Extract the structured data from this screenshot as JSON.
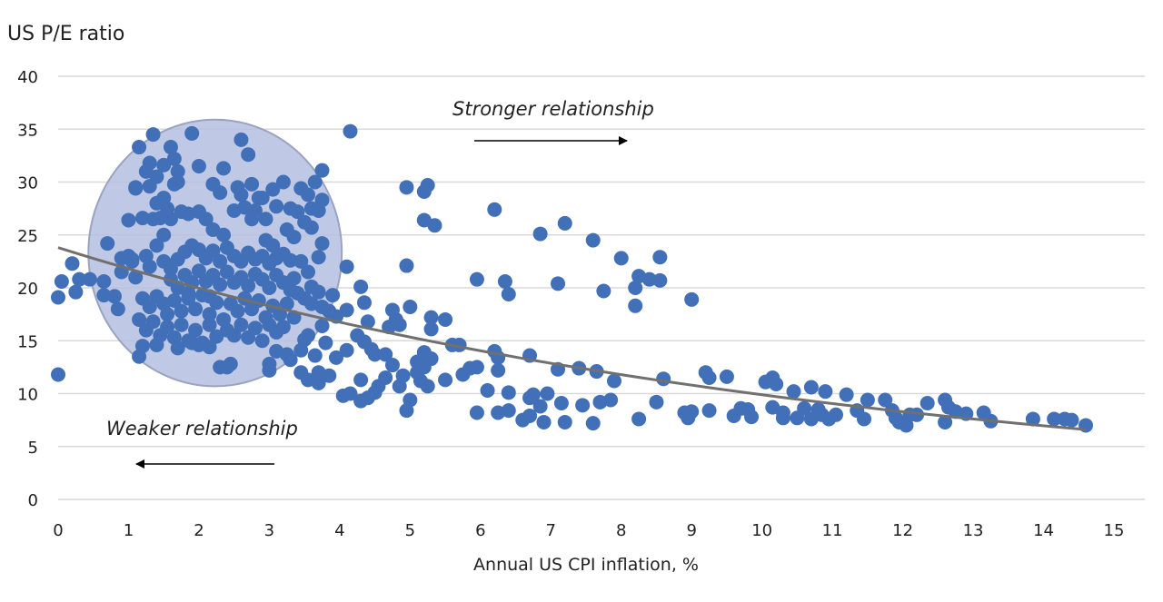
{
  "chart_data": {
    "type": "scatter",
    "title": "",
    "ylabel": "US P/E ratio",
    "xlabel": "Annual US CPI inflation, %",
    "xlim": [
      0,
      15
    ],
    "ylim": [
      0,
      40
    ],
    "xticks": [
      "0",
      "1",
      "2",
      "3",
      "4",
      "5",
      "6",
      "7",
      "8",
      "9",
      "10",
      "11",
      "12",
      "13",
      "14",
      "15"
    ],
    "yticks": [
      "0",
      "5",
      "10",
      "15",
      "20",
      "25",
      "30",
      "35",
      "40"
    ],
    "grid": "horizontal",
    "legend": "none",
    "colors": {
      "points": "#4170b8",
      "trendline": "#707070",
      "highlight_fill": "#b4bfe0",
      "highlight_stroke": "#9aa3bf",
      "grid": "#d9d9d9"
    },
    "trendline": {
      "type": "exponential",
      "a": 23.8,
      "b": -0.0878,
      "x_range": [
        0,
        14.6
      ]
    },
    "highlight_ellipse": {
      "cx": 2.23,
      "cy": 23.3,
      "rx": 1.8,
      "ry": 12.6
    },
    "annotations": [
      {
        "text": "Stronger relationship",
        "arrow": "right"
      },
      {
        "text": "Weaker relationship",
        "arrow": "left"
      }
    ],
    "points": [
      [
        0,
        11.8
      ],
      [
        0,
        19.1
      ],
      [
        0.05,
        20.6
      ],
      [
        0.2,
        22.3
      ],
      [
        0.25,
        19.6
      ],
      [
        0.3,
        20.8
      ],
      [
        0.45,
        20.8
      ],
      [
        0.65,
        20.6
      ],
      [
        0.7,
        24.2
      ],
      [
        0.65,
        19.3
      ],
      [
        0.8,
        19.2
      ],
      [
        0.85,
        18
      ],
      [
        0.9,
        22.8
      ],
      [
        0.9,
        21.5
      ],
      [
        1,
        26.4
      ],
      [
        1.05,
        22.7
      ],
      [
        1.15,
        33.3
      ],
      [
        1.1,
        29.4
      ],
      [
        1.35,
        34.5
      ],
      [
        1.9,
        34.6
      ],
      [
        2.6,
        34
      ],
      [
        2.7,
        32.6
      ],
      [
        3.75,
        31.1
      ],
      [
        4.15,
        34.8
      ],
      [
        4.1,
        22
      ],
      [
        4.3,
        20.1
      ],
      [
        4.95,
        22.1
      ],
      [
        4.95,
        29.5
      ],
      [
        5.25,
        29.7
      ],
      [
        5.2,
        29.1
      ],
      [
        5.2,
        26.4
      ],
      [
        5.35,
        25.9
      ],
      [
        6.2,
        27.4
      ],
      [
        5.95,
        20.8
      ],
      [
        6.35,
        20.6
      ],
      [
        6.4,
        19.4
      ],
      [
        6.85,
        25.1
      ],
      [
        7.2,
        26.1
      ],
      [
        7.6,
        24.5
      ],
      [
        7.1,
        20.4
      ],
      [
        7.75,
        19.7
      ],
      [
        8,
        22.8
      ],
      [
        8.25,
        21.1
      ],
      [
        8.2,
        20
      ],
      [
        8.2,
        18.3
      ],
      [
        8.4,
        20.8
      ],
      [
        8.55,
        22.9
      ],
      [
        8.55,
        20.7
      ],
      [
        9,
        18.9
      ],
      [
        5.95,
        8.2
      ],
      [
        6.1,
        10.3
      ],
      [
        6.25,
        8.2
      ],
      [
        6.4,
        8.4
      ],
      [
        6.4,
        10.1
      ],
      [
        6.6,
        7.5
      ],
      [
        6.7,
        7.9
      ],
      [
        6.7,
        9.6
      ],
      [
        6.75,
        9.9
      ],
      [
        6.85,
        8.8
      ],
      [
        6.9,
        7.3
      ],
      [
        6.95,
        10
      ],
      [
        7.15,
        9.1
      ],
      [
        7.2,
        7.3
      ],
      [
        7.45,
        8.9
      ],
      [
        7.6,
        7.2
      ],
      [
        7.7,
        9.2
      ],
      [
        7.85,
        9.4
      ],
      [
        7.9,
        11.2
      ],
      [
        7.1,
        12.3
      ],
      [
        7.4,
        12.4
      ],
      [
        7.65,
        12.1
      ],
      [
        6.7,
        13.6
      ],
      [
        6.2,
        14
      ],
      [
        6.25,
        13.4
      ],
      [
        6.25,
        12.2
      ],
      [
        5.95,
        12.5
      ],
      [
        5.85,
        12.4
      ],
      [
        5.75,
        11.8
      ],
      [
        5.5,
        11.3
      ],
      [
        5.7,
        14.6
      ],
      [
        5.6,
        14.6
      ],
      [
        5.5,
        17
      ],
      [
        5.3,
        17.2
      ],
      [
        5.3,
        16.1
      ],
      [
        5.2,
        13.9
      ],
      [
        5.3,
        13.3
      ],
      [
        5,
        18.2
      ],
      [
        5,
        9.4
      ],
      [
        4.95,
        8.4
      ],
      [
        8.25,
        7.6
      ],
      [
        8.5,
        9.2
      ],
      [
        8.6,
        11.4
      ],
      [
        8.9,
        8.2
      ],
      [
        9,
        8.3
      ],
      [
        8.95,
        7.7
      ],
      [
        9.2,
        12
      ],
      [
        9.25,
        11.5
      ],
      [
        9.25,
        8.4
      ],
      [
        9.5,
        11.6
      ],
      [
        9.6,
        7.9
      ],
      [
        9.7,
        8.6
      ],
      [
        9.8,
        8.5
      ],
      [
        9.85,
        7.8
      ],
      [
        10.05,
        11.1
      ],
      [
        10.15,
        11.5
      ],
      [
        10.2,
        10.9
      ],
      [
        10.15,
        8.7
      ],
      [
        10.3,
        8.2
      ],
      [
        10.3,
        7.7
      ],
      [
        10.45,
        10.2
      ],
      [
        10.5,
        7.7
      ],
      [
        10.6,
        8.6
      ],
      [
        10.7,
        10.6
      ],
      [
        10.7,
        7.6
      ],
      [
        10.8,
        8.5
      ],
      [
        10.85,
        8
      ],
      [
        10.9,
        10.2
      ],
      [
        10.95,
        7.6
      ],
      [
        11.05,
        8
      ],
      [
        11.2,
        9.9
      ],
      [
        11.35,
        8.4
      ],
      [
        11.45,
        7.6
      ],
      [
        11.5,
        9.4
      ],
      [
        11.75,
        9.4
      ],
      [
        11.85,
        8.4
      ],
      [
        11.9,
        7.7
      ],
      [
        11.95,
        7.3
      ],
      [
        12.05,
        7
      ],
      [
        12.1,
        8
      ],
      [
        12.2,
        8
      ],
      [
        12.35,
        9.1
      ],
      [
        12.6,
        7.3
      ],
      [
        12.6,
        9.4
      ],
      [
        12.65,
        8.7
      ],
      [
        12.75,
        8.3
      ],
      [
        12.9,
        8.1
      ],
      [
        13.15,
        8.2
      ],
      [
        13.25,
        7.4
      ],
      [
        13.85,
        7.6
      ],
      [
        14.15,
        7.6
      ],
      [
        14.3,
        7.6
      ],
      [
        14.4,
        7.5
      ],
      [
        14.6,
        7
      ],
      [
        3.45,
        12
      ],
      [
        3.55,
        11.3
      ],
      [
        3.7,
        12
      ],
      [
        3.7,
        11
      ],
      [
        3.85,
        11.7
      ],
      [
        4.05,
        9.8
      ],
      [
        4.15,
        10
      ],
      [
        4.3,
        9.3
      ],
      [
        4.3,
        11.3
      ],
      [
        4.4,
        9.6
      ],
      [
        4.5,
        10.1
      ],
      [
        4.55,
        10.7
      ],
      [
        4.65,
        11.5
      ],
      [
        4.75,
        12.7
      ],
      [
        4.85,
        10.7
      ],
      [
        4.9,
        11.7
      ],
      [
        4.65,
        13.7
      ],
      [
        4.5,
        13.7
      ],
      [
        4.45,
        14.2
      ],
      [
        4.35,
        14.9
      ],
      [
        4.25,
        15.5
      ],
      [
        4.4,
        16.8
      ],
      [
        4.35,
        18.6
      ],
      [
        4.75,
        17.9
      ],
      [
        4.8,
        17
      ],
      [
        4.85,
        16.5
      ],
      [
        4.7,
        16.3
      ],
      [
        4.1,
        17.9
      ],
      [
        3.95,
        17.3
      ],
      [
        3.9,
        19.3
      ],
      [
        4.1,
        14.1
      ],
      [
        3.95,
        13.4
      ],
      [
        3.8,
        14.8
      ],
      [
        3.65,
        13.6
      ],
      [
        3.55,
        15.5
      ],
      [
        3.75,
        16.4
      ],
      [
        5.1,
        12
      ],
      [
        5.2,
        12.5
      ],
      [
        5.1,
        13
      ],
      [
        5.15,
        11.2
      ],
      [
        5.25,
        10.7
      ],
      [
        1.25,
        31
      ],
      [
        1.3,
        31.8
      ],
      [
        1.4,
        30.5
      ],
      [
        1.5,
        31.6
      ],
      [
        1.6,
        33.3
      ],
      [
        1.65,
        32.2
      ],
      [
        1.7,
        31
      ],
      [
        1.7,
        30
      ],
      [
        1.65,
        29.8
      ],
      [
        1.1,
        29.5
      ],
      [
        1.3,
        29.6
      ],
      [
        1.4,
        28
      ],
      [
        1.5,
        28.5
      ],
      [
        1.55,
        27.5
      ],
      [
        1.6,
        26.5
      ],
      [
        1.75,
        27.2
      ],
      [
        1.85,
        27
      ],
      [
        2,
        27.2
      ],
      [
        2.1,
        26.5
      ],
      [
        2.2,
        25.5
      ],
      [
        2.35,
        25
      ],
      [
        2.5,
        27.3
      ],
      [
        2.65,
        27.6
      ],
      [
        2.8,
        27.3
      ],
      [
        2.75,
        26.5
      ],
      [
        2.95,
        26.5
      ],
      [
        2.9,
        28.5
      ],
      [
        2.6,
        28.8
      ],
      [
        2.55,
        29.5
      ],
      [
        2.75,
        29.8
      ],
      [
        2.85,
        28.5
      ],
      [
        3.05,
        29.3
      ],
      [
        3.2,
        30
      ],
      [
        3.45,
        29.4
      ],
      [
        3.55,
        28.8
      ],
      [
        3.65,
        30
      ],
      [
        3.3,
        27.5
      ],
      [
        3.1,
        27.7
      ],
      [
        3.4,
        27.2
      ],
      [
        3.6,
        27.5
      ],
      [
        3.7,
        27.3
      ],
      [
        3.75,
        28.3
      ],
      [
        3.75,
        24.2
      ],
      [
        3.7,
        22.9
      ],
      [
        3.6,
        25.7
      ],
      [
        3.5,
        26.2
      ],
      [
        3.35,
        24.8
      ],
      [
        3.25,
        25.5
      ],
      [
        3.05,
        24
      ],
      [
        2.95,
        24.5
      ],
      [
        2.2,
        29.8
      ],
      [
        2.3,
        29
      ],
      [
        2.35,
        31.3
      ],
      [
        2,
        31.5
      ],
      [
        1.35,
        26.5
      ],
      [
        1.45,
        26.6
      ],
      [
        1.2,
        26.6
      ],
      [
        1.5,
        25
      ],
      [
        1.4,
        24
      ],
      [
        1.25,
        23
      ],
      [
        1.05,
        22.5
      ],
      [
        1.3,
        22
      ],
      [
        1.5,
        22.5
      ],
      [
        1.6,
        21.8
      ],
      [
        1.7,
        22.7
      ],
      [
        1.8,
        23.4
      ],
      [
        1.9,
        24
      ],
      [
        2,
        23.6
      ],
      [
        2.1,
        22.8
      ],
      [
        2.2,
        23.5
      ],
      [
        2.3,
        22.5
      ],
      [
        2.4,
        23.8
      ],
      [
        2.5,
        23
      ],
      [
        2.6,
        22.5
      ],
      [
        2.7,
        23.3
      ],
      [
        2.8,
        22.7
      ],
      [
        2.9,
        23
      ],
      [
        3,
        22.3
      ],
      [
        3.1,
        22.8
      ],
      [
        3.2,
        23.2
      ],
      [
        3.3,
        22.6
      ],
      [
        1.6,
        20.8
      ],
      [
        1.7,
        20
      ],
      [
        1.8,
        21.2
      ],
      [
        1.9,
        20.5
      ],
      [
        2,
        21.6
      ],
      [
        2.1,
        20.6
      ],
      [
        2.2,
        21.2
      ],
      [
        2.3,
        20.3
      ],
      [
        2.4,
        21.5
      ],
      [
        2.5,
        20.5
      ],
      [
        2.6,
        21
      ],
      [
        2.7,
        20.2
      ],
      [
        2.8,
        21.3
      ],
      [
        2.9,
        20.8
      ],
      [
        3,
        20
      ],
      [
        3.1,
        21.2
      ],
      [
        3.2,
        20.5
      ],
      [
        3.3,
        19.8
      ],
      [
        3.4,
        19.5
      ],
      [
        3.5,
        19
      ],
      [
        3.6,
        18.5
      ],
      [
        3.7,
        19.6
      ],
      [
        1.2,
        19
      ],
      [
        1.3,
        18.2
      ],
      [
        1.4,
        19.2
      ],
      [
        1.5,
        18.5
      ],
      [
        1.55,
        17.5
      ],
      [
        1.65,
        18.8
      ],
      [
        1.75,
        17.8
      ],
      [
        1.85,
        19
      ],
      [
        1.95,
        18
      ],
      [
        2.05,
        19.3
      ],
      [
        2.15,
        17.5
      ],
      [
        2.25,
        18.6
      ],
      [
        2.35,
        17
      ],
      [
        2.45,
        18.5
      ],
      [
        2.55,
        17.8
      ],
      [
        2.65,
        19
      ],
      [
        2.75,
        18
      ],
      [
        2.85,
        18.8
      ],
      [
        2.95,
        17.2
      ],
      [
        3.05,
        18.3
      ],
      [
        3.15,
        17.5
      ],
      [
        3.25,
        18.5
      ],
      [
        3.35,
        17.2
      ],
      [
        1.15,
        17
      ],
      [
        1.25,
        16
      ],
      [
        1.35,
        16.8
      ],
      [
        1.45,
        15.5
      ],
      [
        1.55,
        16.3
      ],
      [
        1.65,
        15.3
      ],
      [
        1.75,
        16.5
      ],
      [
        1.85,
        15
      ],
      [
        1.95,
        16
      ],
      [
        2.05,
        14.8
      ],
      [
        2.15,
        16.5
      ],
      [
        2.25,
        15.4
      ],
      [
        2.4,
        16
      ],
      [
        2.5,
        15.5
      ],
      [
        2.6,
        16.5
      ],
      [
        2.7,
        15.3
      ],
      [
        2.8,
        16.2
      ],
      [
        2.9,
        15
      ],
      [
        3,
        16.5
      ],
      [
        3.1,
        15.8
      ],
      [
        3.2,
        16.3
      ],
      [
        1.2,
        14.5
      ],
      [
        1.15,
        13.5
      ],
      [
        1.4,
        14.6
      ],
      [
        1.7,
        14.3
      ],
      [
        1.9,
        14.8
      ],
      [
        2,
        14.6
      ],
      [
        2.15,
        14.4
      ],
      [
        2.3,
        12.5
      ],
      [
        2.45,
        12.8
      ],
      [
        2.4,
        12.5
      ],
      [
        3,
        12.2
      ],
      [
        3,
        12.8
      ],
      [
        3.1,
        14
      ],
      [
        3.3,
        13.2
      ],
      [
        3.25,
        13.7
      ],
      [
        3.45,
        14.1
      ],
      [
        3.5,
        15.1
      ],
      [
        1.85,
        19.5
      ],
      [
        2.15,
        19.2
      ],
      [
        1,
        23
      ],
      [
        1.1,
        21
      ],
      [
        3.55,
        21.5
      ],
      [
        3.45,
        22.5
      ],
      [
        3.35,
        20.9
      ],
      [
        3.6,
        20.1
      ],
      [
        3.75,
        18.2
      ],
      [
        3.85,
        17.8
      ]
    ]
  }
}
